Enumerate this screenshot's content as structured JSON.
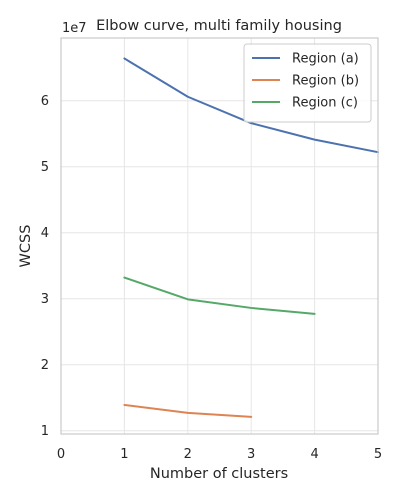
{
  "chart_data": {
    "type": "line",
    "title": "Elbow curve, multi family housing",
    "xlabel": "Number of clusters",
    "ylabel": "WCSS",
    "y_offset_text": "1e7",
    "xlim": [
      0,
      5
    ],
    "ylim": [
      0.95,
      6.95
    ],
    "x_ticks": [
      0,
      1,
      2,
      3,
      4,
      5
    ],
    "y_ticks": [
      1,
      2,
      3,
      4,
      5,
      6
    ],
    "grid": true,
    "legend_position": "top-right",
    "series": [
      {
        "name": "Region (a)",
        "color": "#4c72b0",
        "x": [
          1,
          2,
          3,
          4,
          5
        ],
        "y": [
          6.64,
          6.06,
          5.66,
          5.41,
          5.22
        ]
      },
      {
        "name": "Region (b)",
        "color": "#dd8452",
        "x": [
          1,
          2,
          3
        ],
        "y": [
          1.39,
          1.27,
          1.21
        ]
      },
      {
        "name": "Region (c)",
        "color": "#55a868",
        "x": [
          1,
          2,
          3,
          4
        ],
        "y": [
          3.32,
          2.99,
          2.86,
          2.77
        ]
      }
    ]
  }
}
